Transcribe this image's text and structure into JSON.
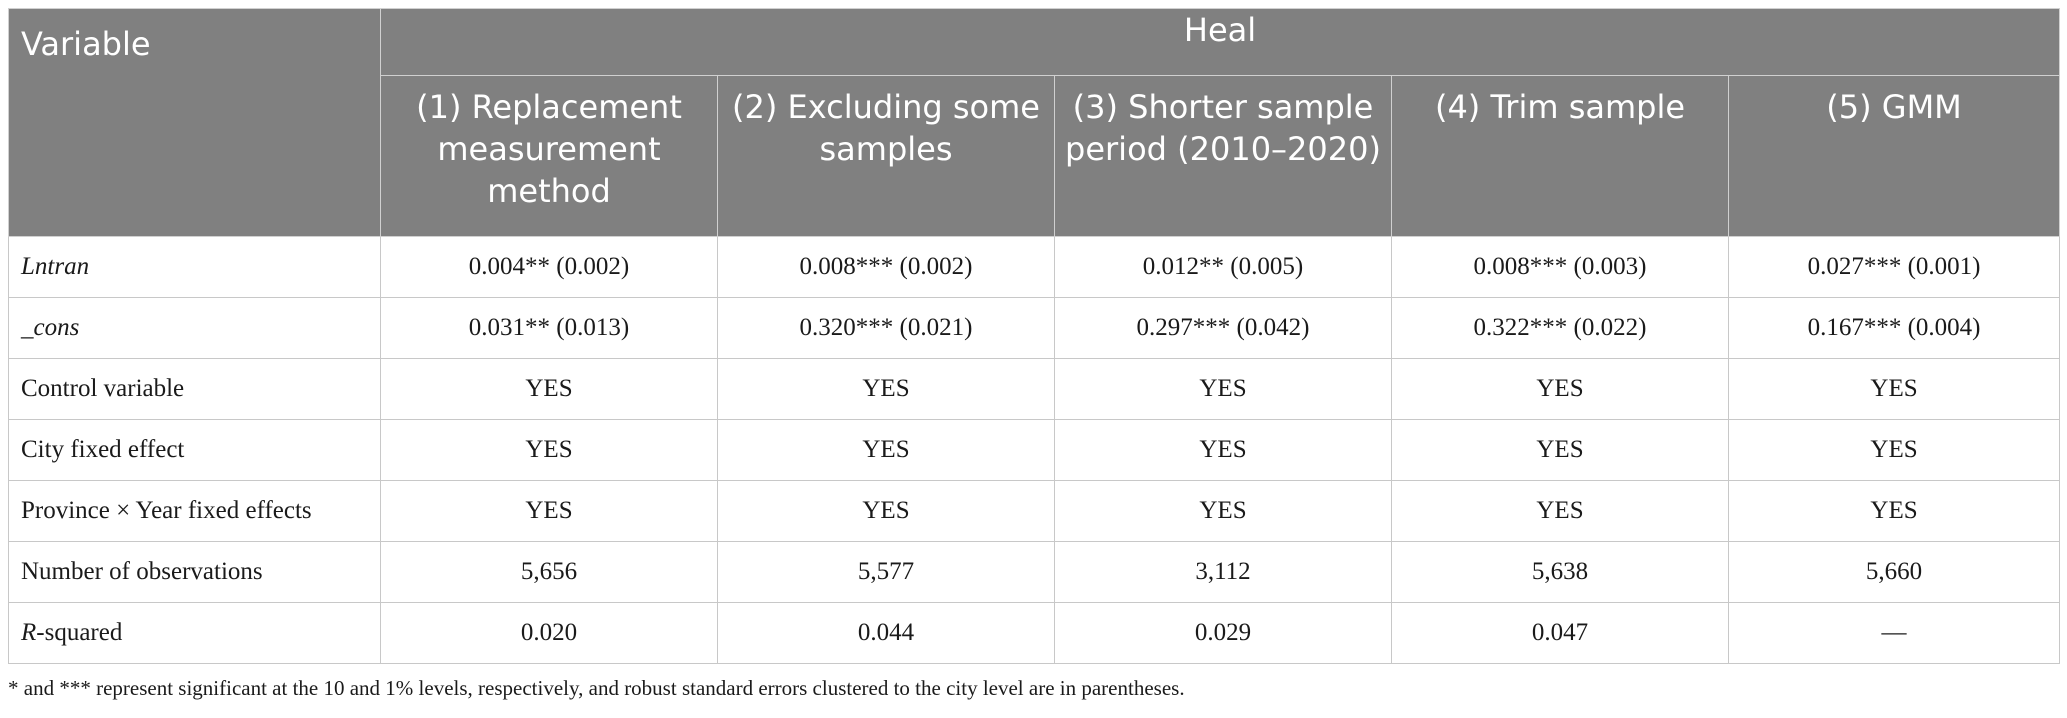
{
  "header": {
    "variable": "Variable",
    "group": "Heal",
    "columns": [
      "(1) Replacement measurement method",
      "(2) Excluding some samples",
      "(3) Shorter sample period (2010–2020)",
      "(4) Trim sample",
      "(5) GMM"
    ]
  },
  "rows": [
    {
      "label": "Lntran",
      "italic": true,
      "values": [
        "0.004** (0.002)",
        "0.008*** (0.002)",
        "0.012** (0.005)",
        "0.008*** (0.003)",
        "0.027*** (0.001)"
      ]
    },
    {
      "label": "_cons",
      "italic": true,
      "values": [
        "0.031** (0.013)",
        "0.320*** (0.021)",
        "0.297*** (0.042)",
        "0.322*** (0.022)",
        "0.167*** (0.004)"
      ]
    },
    {
      "label": "Control variable",
      "values": [
        "YES",
        "YES",
        "YES",
        "YES",
        "YES"
      ]
    },
    {
      "label": "City fixed effect",
      "values": [
        "YES",
        "YES",
        "YES",
        "YES",
        "YES"
      ]
    },
    {
      "label": "Province × Year fixed effects",
      "values": [
        "YES",
        "YES",
        "YES",
        "YES",
        "YES"
      ]
    },
    {
      "label": "Number of observations",
      "values": [
        "5,656",
        "5,577",
        "3,112",
        "5,638",
        "5,660"
      ]
    },
    {
      "label_italic": "R",
      "label_rest": "-squared",
      "values": [
        "0.020",
        "0.044",
        "0.029",
        "0.047",
        "—"
      ]
    }
  ],
  "note": "* and *** represent significant at the 10 and 1% levels, respectively, and robust standard errors clustered to the city level are in parentheses."
}
